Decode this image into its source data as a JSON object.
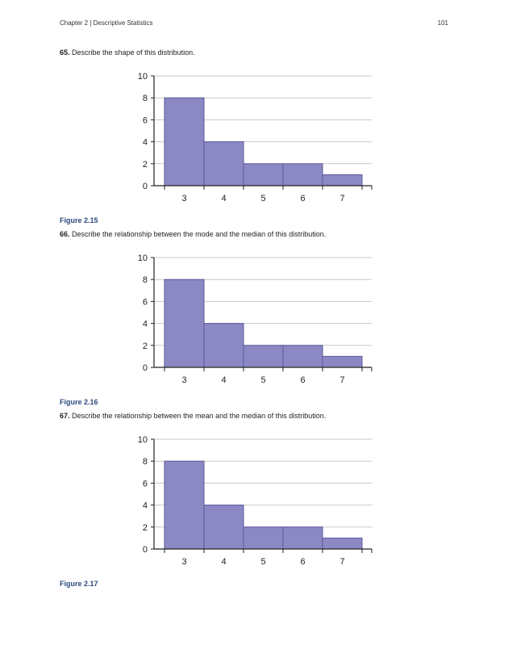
{
  "header": {
    "chapter": "Chapter 2 | Descriptive Statistics",
    "page_number": "101"
  },
  "questions": [
    {
      "number": "65.",
      "text": "Describe the shape of this distribution.",
      "figure_caption": "Figure 2.15"
    },
    {
      "number": "66.",
      "text": "Describe the relationship between the mode and the median of this distribution.",
      "figure_caption": "Figure 2.16"
    },
    {
      "number": "67.",
      "text": "Describe the relationship between the mean and the median of this distribution.",
      "figure_caption": "Figure 2.17"
    }
  ],
  "colors": {
    "bar_fill": "#8b88c4",
    "bar_stroke": "#5a579c",
    "grid": "#c8c8c8",
    "caption": "#2b4a7c"
  },
  "chart_data": [
    {
      "type": "bar",
      "categories": [
        "3",
        "4",
        "5",
        "6",
        "7"
      ],
      "values": [
        8,
        4,
        2,
        2,
        1
      ],
      "ylim": [
        0,
        10
      ],
      "yticks": [
        0,
        2,
        4,
        6,
        8,
        10
      ],
      "grid": true,
      "title": "",
      "xlabel": "",
      "ylabel": ""
    },
    {
      "type": "bar",
      "categories": [
        "3",
        "4",
        "5",
        "6",
        "7"
      ],
      "values": [
        8,
        4,
        2,
        2,
        1
      ],
      "ylim": [
        0,
        10
      ],
      "yticks": [
        0,
        2,
        4,
        6,
        8,
        10
      ],
      "grid": true,
      "title": "",
      "xlabel": "",
      "ylabel": ""
    },
    {
      "type": "bar",
      "categories": [
        "3",
        "4",
        "5",
        "6",
        "7"
      ],
      "values": [
        8,
        4,
        2,
        2,
        1
      ],
      "ylim": [
        0,
        10
      ],
      "yticks": [
        0,
        2,
        4,
        6,
        8,
        10
      ],
      "grid": true,
      "title": "",
      "xlabel": "",
      "ylabel": ""
    }
  ]
}
